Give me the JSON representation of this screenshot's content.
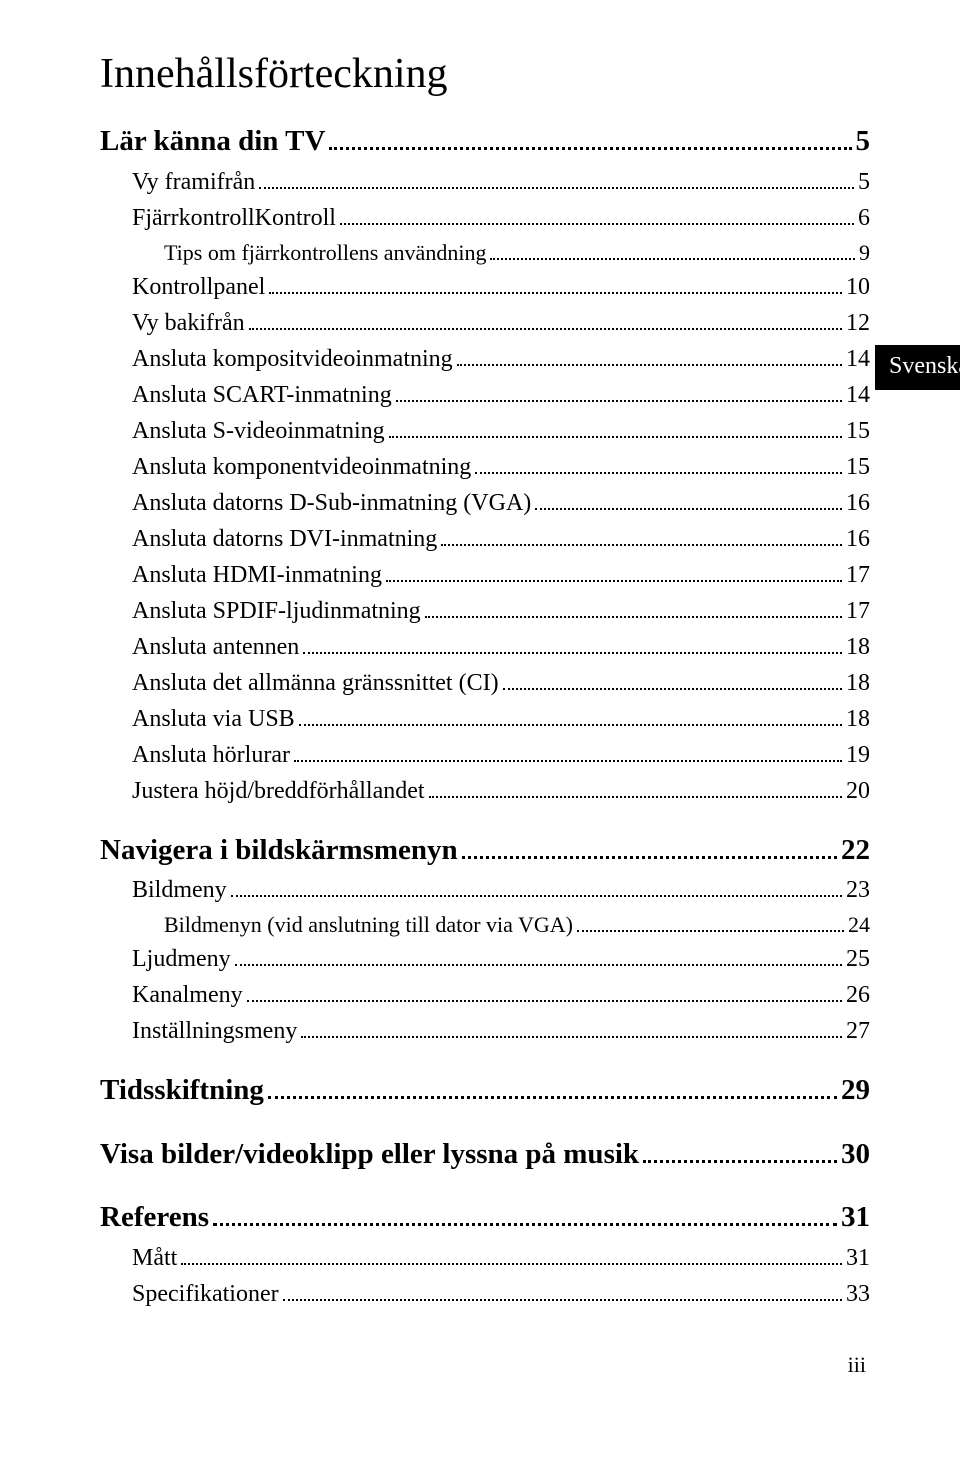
{
  "title": "Innehållsförteckning",
  "sideTab": "Svenska",
  "pageFooter": "iii",
  "colors": {
    "background": "#ffffff",
    "text": "#000000",
    "tab_bg": "#000000",
    "tab_text": "#ffffff"
  },
  "toc": [
    {
      "level": 0,
      "label": "Lär känna din TV",
      "page": "5"
    },
    {
      "level": 1,
      "label": "Vy framifrån",
      "page": "5"
    },
    {
      "level": 1,
      "label": "FjärrkontrollKontroll",
      "page": "6"
    },
    {
      "level": 2,
      "label": "Tips om fjärrkontrollens användning",
      "page": "9"
    },
    {
      "level": 1,
      "label": "Kontrollpanel",
      "page": "10"
    },
    {
      "level": 1,
      "label": "Vy bakifrån",
      "page": "12"
    },
    {
      "level": 1,
      "label": "Ansluta kompositvideoinmatning",
      "page": "14"
    },
    {
      "level": 1,
      "label": "Ansluta SCART-inmatning",
      "page": "14"
    },
    {
      "level": 1,
      "label": "Ansluta S-videoinmatning",
      "page": "15"
    },
    {
      "level": 1,
      "label": "Ansluta komponentvideoinmatning",
      "page": "15"
    },
    {
      "level": 1,
      "label": "Ansluta datorns D-Sub-inmatning (VGA)",
      "page": "16"
    },
    {
      "level": 1,
      "label": "Ansluta datorns DVI-inmatning",
      "page": "16"
    },
    {
      "level": 1,
      "label": "Ansluta HDMI-inmatning",
      "page": "17"
    },
    {
      "level": 1,
      "label": "Ansluta SPDIF-ljudinmatning",
      "page": "17"
    },
    {
      "level": 1,
      "label": "Ansluta antennen",
      "page": "18"
    },
    {
      "level": 1,
      "label": "Ansluta det allmänna gränssnittet (CI)",
      "page": "18"
    },
    {
      "level": 1,
      "label": "Ansluta via USB",
      "page": "18"
    },
    {
      "level": 1,
      "label": "Ansluta hörlurar",
      "page": "19"
    },
    {
      "level": 1,
      "label": "Justera höjd/breddförhållandet",
      "page": "20"
    },
    {
      "level": 0,
      "label": "Navigera i bildskärmsmenyn",
      "page": "22"
    },
    {
      "level": 1,
      "label": "Bildmeny",
      "page": "23"
    },
    {
      "level": 2,
      "label": "Bildmenyn (vid anslutning till dator via VGA)",
      "page": "24"
    },
    {
      "level": 1,
      "label": "Ljudmeny",
      "page": "25"
    },
    {
      "level": 1,
      "label": "Kanalmeny",
      "page": "26"
    },
    {
      "level": 1,
      "label": "Inställningsmeny",
      "page": "27"
    },
    {
      "level": 0,
      "label": "Tidsskiftning",
      "page": "29"
    },
    {
      "level": 0,
      "label": "Visa bilder/videoklipp eller lyssna på musik",
      "page": "30"
    },
    {
      "level": 0,
      "label": "Referens",
      "page": "31"
    },
    {
      "level": 1,
      "label": "Mått",
      "page": "31"
    },
    {
      "level": 1,
      "label": "Specifikationer",
      "page": "33"
    }
  ]
}
